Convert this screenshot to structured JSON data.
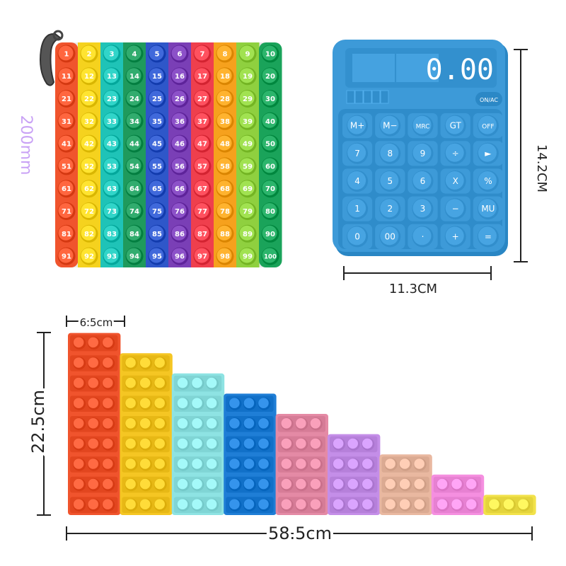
{
  "hundred_board": {
    "dimension_label": "200mm",
    "numbers": [
      "1",
      "2",
      "3",
      "4",
      "5",
      "6",
      "7",
      "8",
      "9",
      "10",
      "11",
      "12",
      "13",
      "14",
      "15",
      "16",
      "17",
      "18",
      "19",
      "20",
      "21",
      "22",
      "23",
      "24",
      "25",
      "26",
      "27",
      "28",
      "29",
      "30",
      "31",
      "32",
      "33",
      "34",
      "35",
      "36",
      "37",
      "38",
      "39",
      "40",
      "41",
      "42",
      "43",
      "44",
      "45",
      "46",
      "47",
      "48",
      "49",
      "50",
      "51",
      "52",
      "53",
      "54",
      "55",
      "56",
      "57",
      "58",
      "59",
      "60",
      "61",
      "62",
      "63",
      "64",
      "65",
      "66",
      "67",
      "68",
      "69",
      "70",
      "71",
      "72",
      "73",
      "74",
      "75",
      "76",
      "77",
      "78",
      "79",
      "80",
      "81",
      "82",
      "83",
      "84",
      "85",
      "86",
      "87",
      "88",
      "89",
      "90",
      "91",
      "92",
      "93",
      "94",
      "95",
      "96",
      "97",
      "98",
      "99",
      "100"
    ],
    "column_colors": [
      "#f0542d",
      "#f5d21e",
      "#1fc3b7",
      "#1f9a5c",
      "#2e57c9",
      "#7a3fb6",
      "#ef3f4d",
      "#f6a11d",
      "#8fd03f",
      "#1aa35a"
    ]
  },
  "calculator": {
    "display_value": "0.00",
    "on_key": "ON/AC",
    "keys": [
      "M+",
      "M−",
      "MRC",
      "GT",
      "OFF",
      "7",
      "8",
      "9",
      "÷",
      "►",
      "4",
      "5",
      "6",
      "X",
      "%",
      "1",
      "2",
      "3",
      "−",
      "MU",
      "0",
      "00",
      "·",
      "+",
      "="
    ],
    "height_label": "14.2CM",
    "width_label": "11.3CM",
    "color": "#3d9ad8"
  },
  "staircase": {
    "step_width_label": "6.5cm",
    "height_label": "22.5cm",
    "total_width_label": "58.5cm",
    "step_colors": [
      "#f0542d",
      "#f5c623",
      "#8ee3e3",
      "#1f7ed6",
      "#e48aa5",
      "#c48ee8",
      "#e9b8a0",
      "#f58fe0",
      "#f2e24a"
    ],
    "step_rows": [
      9,
      8,
      7,
      6,
      5,
      4,
      3,
      2,
      1
    ]
  }
}
